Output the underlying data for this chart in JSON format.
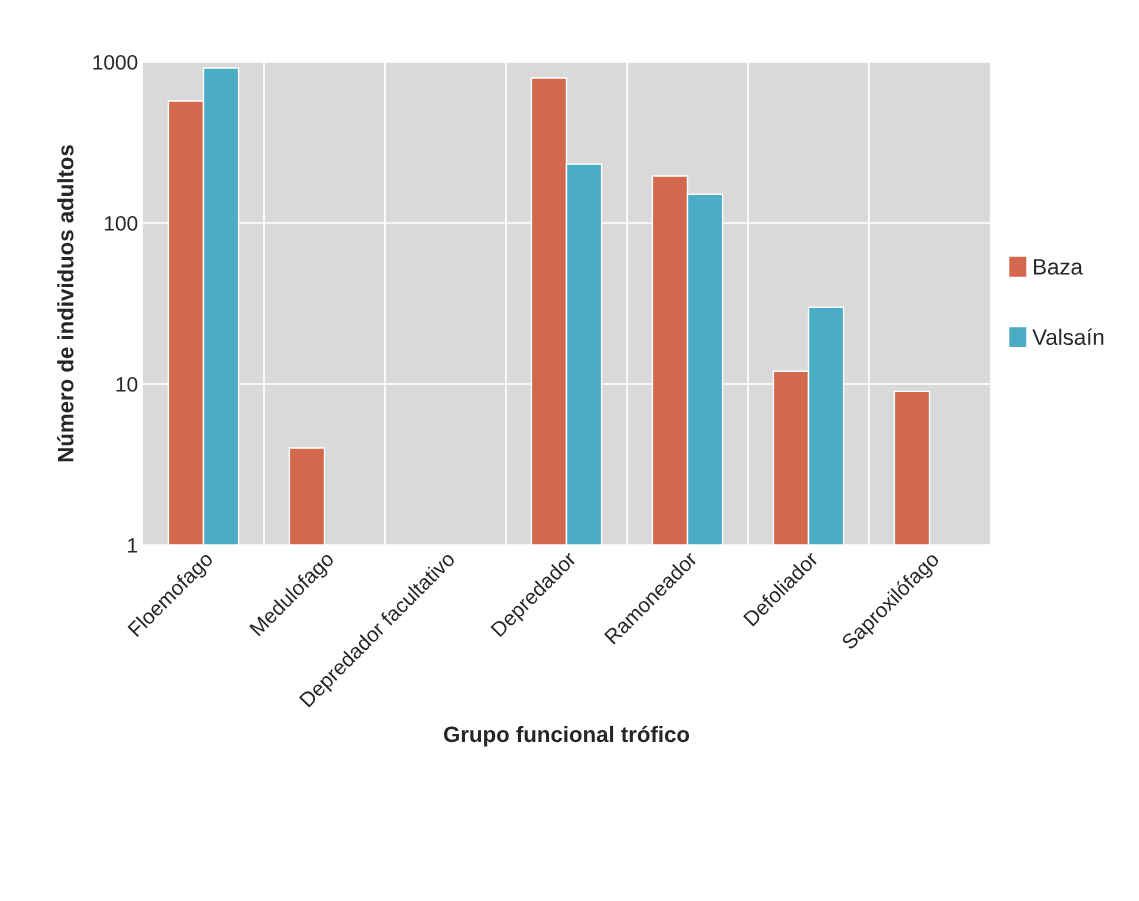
{
  "chart_data": {
    "type": "bar",
    "xlabel": "Grupo funcional trófico",
    "ylabel": "Número de individuos adultos",
    "categories": [
      "Floemofago",
      "Medulofago",
      "Depredador facultativo",
      "Depredador",
      "Ramoneador",
      "Defoliador",
      "Saproxilófago"
    ],
    "series": [
      {
        "name": "Baza",
        "color": "#d4684c",
        "values": [
          573,
          4,
          null,
          795,
          196,
          12,
          9
        ]
      },
      {
        "name": "Valsaín",
        "color": "#4bacc6",
        "values": [
          918,
          null,
          null,
          232,
          151,
          30,
          null
        ]
      }
    ],
    "log": "y",
    "ylim": [
      1,
      1000
    ],
    "yticks": [
      1,
      10,
      100,
      1000
    ],
    "grid": true,
    "legend": "right"
  }
}
